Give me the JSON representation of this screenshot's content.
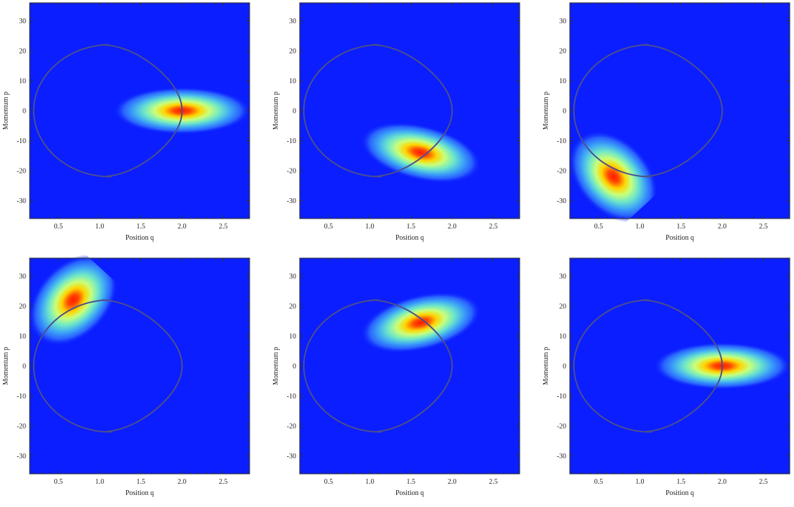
{
  "colors": {
    "background_blue": "#0a1eff",
    "orbit": "#4d4f8c",
    "peak": "#ff1a00"
  },
  "chart_data": [
    {
      "type": "heatmap",
      "title": "",
      "xlabel": "Position q",
      "ylabel": "Momentum p",
      "xlim": [
        0.15,
        2.82
      ],
      "ylim": [
        -36,
        36
      ],
      "xticks": [
        "0.5",
        "1.0",
        "1.5",
        "2.0",
        "2.5"
      ],
      "yticks": [
        "-30",
        "-20",
        "-10",
        "0",
        "10",
        "20",
        "30"
      ],
      "orbit_curve": "closed energy contour through (0.2, 0), (0.7, ±22), (2.0, 0)",
      "blob": {
        "center_q": 2.0,
        "center_p": 0,
        "spread_q": 0.38,
        "spread_p": 3.6,
        "tilt": 0
      },
      "grid": false,
      "legend": "none"
    },
    {
      "type": "heatmap",
      "title": "",
      "xlabel": "Position q",
      "ylabel": "Momentum p",
      "xlim": [
        0.15,
        2.82
      ],
      "ylim": [
        -36,
        36
      ],
      "xticks": [
        "0.5",
        "1.0",
        "1.5",
        "2.0",
        "2.5"
      ],
      "yticks": [
        "-30",
        "-20",
        "-10",
        "0",
        "10",
        "20",
        "30"
      ],
      "orbit_curve": "closed energy contour through (0.2, 0), (0.7, ±22), (2.0, 0)",
      "blob": {
        "center_q": 1.62,
        "center_p": -14,
        "spread_q": 0.34,
        "spread_p": 4.2,
        "tilt": -0.15
      },
      "grid": false,
      "legend": "none"
    },
    {
      "type": "heatmap",
      "title": "",
      "xlabel": "Position q",
      "ylabel": "Momentum p",
      "xlim": [
        0.15,
        2.82
      ],
      "ylim": [
        -36,
        36
      ],
      "xticks": [
        "0.5",
        "1.0",
        "1.5",
        "2.0",
        "2.5"
      ],
      "yticks": [
        "-30",
        "-20",
        "-10",
        "0",
        "10",
        "20",
        "30"
      ],
      "orbit_curve": "closed energy contour through (0.2, 0), (0.7, ±22), (2.0, 0)",
      "blob": {
        "center_q": 0.68,
        "center_p": -22,
        "spread_q": 0.2,
        "spread_p": 8,
        "tilt": 0.5
      },
      "grid": false,
      "legend": "none"
    },
    {
      "type": "heatmap",
      "title": "",
      "xlabel": "Position q",
      "ylabel": "Momentum p",
      "xlim": [
        0.15,
        2.82
      ],
      "ylim": [
        -36,
        36
      ],
      "xticks": [
        "0.5",
        "1.0",
        "1.5",
        "2.0",
        "2.5"
      ],
      "yticks": [
        "-30",
        "-20",
        "-10",
        "0",
        "10",
        "20",
        "30"
      ],
      "orbit_curve": "closed energy contour through (0.2, 0), (0.7, ±22), (2.0, 0)",
      "blob": {
        "center_q": 0.68,
        "center_p": 22,
        "spread_q": 0.2,
        "spread_p": 8,
        "tilt": -0.5
      },
      "grid": false,
      "legend": "none"
    },
    {
      "type": "heatmap",
      "title": "",
      "xlabel": "Position q",
      "ylabel": "Momentum p",
      "xlim": [
        0.15,
        2.82
      ],
      "ylim": [
        -36,
        36
      ],
      "xticks": [
        "0.5",
        "1.0",
        "1.5",
        "2.0",
        "2.5"
      ],
      "yticks": [
        "-30",
        "-20",
        "-10",
        "0",
        "10",
        "20",
        "30"
      ],
      "orbit_curve": "closed energy contour through (0.2, 0), (0.7, ±22), (2.0, 0)",
      "blob": {
        "center_q": 1.62,
        "center_p": 14.5,
        "spread_q": 0.34,
        "spread_p": 4.2,
        "tilt": 0.15
      },
      "grid": false,
      "legend": "none"
    },
    {
      "type": "heatmap",
      "title": "",
      "xlabel": "Position q",
      "ylabel": "Momentum p",
      "xlim": [
        0.15,
        2.82
      ],
      "ylim": [
        -36,
        36
      ],
      "xticks": [
        "0.5",
        "1.0",
        "1.5",
        "2.0",
        "2.5"
      ],
      "yticks": [
        "-30",
        "-20",
        "-10",
        "0",
        "10",
        "20",
        "30"
      ],
      "orbit_curve": "closed energy contour through (0.2, 0), (0.7, ±22), (2.0, 0)",
      "blob": {
        "center_q": 2.0,
        "center_p": 0,
        "spread_q": 0.38,
        "spread_p": 3.6,
        "tilt": 0
      },
      "grid": false,
      "legend": "none"
    }
  ]
}
